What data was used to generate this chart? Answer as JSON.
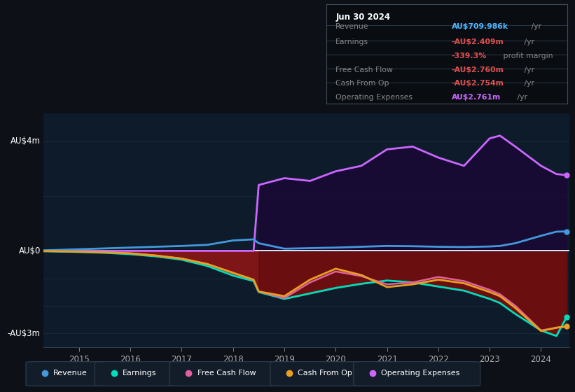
{
  "bg_color": "#0d1117",
  "plot_bg_color": "#0d1b2a",
  "title_box": {
    "date": "Jun 30 2024",
    "rows": [
      {
        "label": "Revenue",
        "value": "AU$709.986k",
        "unit": " /yr",
        "value_color": "#4db8ff"
      },
      {
        "label": "Earnings",
        "value": "-AU$2.409m",
        "unit": " /yr",
        "value_color": "#e05050"
      },
      {
        "label": "",
        "value": "-339.3%",
        "unit": " profit margin",
        "value_color": "#e05050"
      },
      {
        "label": "Free Cash Flow",
        "value": "-AU$2.760m",
        "unit": " /yr",
        "value_color": "#e05050"
      },
      {
        "label": "Cash From Op",
        "value": "-AU$2.754m",
        "unit": " /yr",
        "value_color": "#e05050"
      },
      {
        "label": "Operating Expenses",
        "value": "AU$2.761m",
        "unit": " /yr",
        "value_color": "#cc66ff"
      }
    ]
  },
  "years": [
    2014.3,
    2014.5,
    2015.0,
    2015.5,
    2016.0,
    2016.5,
    2017.0,
    2017.5,
    2018.0,
    2018.4,
    2018.5,
    2019.0,
    2019.5,
    2020.0,
    2020.5,
    2021.0,
    2021.5,
    2022.0,
    2022.5,
    2023.0,
    2023.2,
    2023.5,
    2024.0,
    2024.3,
    2024.5
  ],
  "revenue": [
    0.02,
    0.03,
    0.06,
    0.09,
    0.12,
    0.15,
    0.18,
    0.22,
    0.38,
    0.42,
    0.28,
    0.08,
    0.1,
    0.12,
    0.15,
    0.18,
    0.17,
    0.15,
    0.14,
    0.16,
    0.18,
    0.28,
    0.55,
    0.7,
    0.71
  ],
  "earnings": [
    -0.01,
    -0.02,
    -0.04,
    -0.07,
    -0.12,
    -0.2,
    -0.32,
    -0.55,
    -0.9,
    -1.1,
    -1.5,
    -1.75,
    -1.55,
    -1.35,
    -1.2,
    -1.08,
    -1.15,
    -1.3,
    -1.45,
    -1.75,
    -1.9,
    -2.3,
    -2.9,
    -3.1,
    -2.41
  ],
  "free_cash_flow": [
    -0.01,
    -0.01,
    -0.03,
    -0.05,
    -0.09,
    -0.17,
    -0.28,
    -0.48,
    -0.8,
    -1.05,
    -1.48,
    -1.72,
    -1.15,
    -0.75,
    -0.92,
    -1.22,
    -1.15,
    -0.95,
    -1.1,
    -1.42,
    -1.58,
    -2.0,
    -2.9,
    -2.8,
    -2.76
  ],
  "cash_from_op": [
    -0.01,
    -0.01,
    -0.03,
    -0.05,
    -0.09,
    -0.17,
    -0.28,
    -0.48,
    -0.8,
    -1.05,
    -1.48,
    -1.65,
    -1.05,
    -0.65,
    -0.88,
    -1.32,
    -1.22,
    -1.05,
    -1.18,
    -1.5,
    -1.65,
    -2.08,
    -2.92,
    -2.8,
    -2.75
  ],
  "operating_expenses": [
    0.0,
    0.0,
    0.0,
    0.0,
    0.0,
    0.0,
    0.0,
    0.0,
    0.0,
    0.0,
    2.4,
    2.65,
    2.55,
    2.9,
    3.1,
    3.7,
    3.8,
    3.4,
    3.1,
    4.1,
    4.2,
    3.8,
    3.1,
    2.8,
    2.76
  ],
  "revenue_color": "#4499dd",
  "earnings_color": "#00ddbb",
  "free_cash_flow_color": "#e060a0",
  "cash_from_op_color": "#e8a020",
  "operating_expenses_color": "#cc66ff",
  "fill_neg_color": "#8b1515",
  "fill_neg_color2": "#5a0a0a",
  "fill_op_color": "#1a0a35",
  "ylim_min": -3.5,
  "ylim_max": 5.0,
  "xlim_min": 2014.3,
  "xlim_max": 2024.55,
  "xtick_positions": [
    2015,
    2016,
    2017,
    2018,
    2019,
    2020,
    2021,
    2022,
    2023,
    2024
  ],
  "xtick_labels": [
    "2015",
    "2016",
    "2017",
    "2018",
    "2019",
    "2020",
    "2021",
    "2022",
    "2023",
    "2024"
  ],
  "legend_labels": [
    "Revenue",
    "Earnings",
    "Free Cash Flow",
    "Cash From Op",
    "Operating Expenses"
  ],
  "legend_colors": [
    "#4499dd",
    "#00ddbb",
    "#e060a0",
    "#e8a020",
    "#cc66ff"
  ]
}
